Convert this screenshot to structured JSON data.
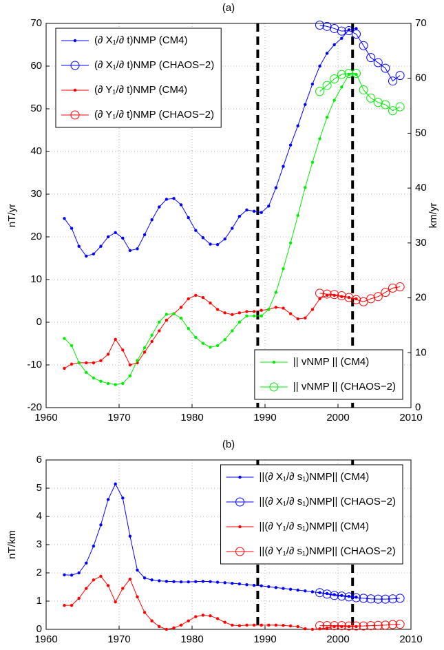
{
  "chart_data": [
    {
      "type": "line",
      "title": "(a)",
      "ylabel": "nT/yr",
      "y2label": "km/yr",
      "x": [
        1962.5,
        1963.5,
        1964.5,
        1965.5,
        1966.5,
        1967.5,
        1968.5,
        1969.5,
        1970.5,
        1971.5,
        1972.5,
        1973.5,
        1974.5,
        1975.5,
        1976.5,
        1977.5,
        1978.5,
        1979.5,
        1980.5,
        1981.5,
        1982.5,
        1983.5,
        1984.5,
        1985.5,
        1986.5,
        1987.5,
        1988.5,
        1989.5,
        1990.5,
        1991.5,
        1992.5,
        1993.5,
        1994.5,
        1995.5,
        1996.5,
        1997.5,
        1998.5,
        1999.5,
        2000.5,
        2001.5,
        2002.5,
        2003.5,
        2004.5,
        2005.5,
        2006.5,
        2007.5,
        2008.5
      ],
      "xlim": [
        1960,
        2010
      ],
      "xticks": [
        1960,
        1970,
        1980,
        1990,
        2000,
        2010
      ],
      "ylim": [
        -20,
        70
      ],
      "yticks": [
        -20,
        -10,
        0,
        10,
        20,
        30,
        40,
        50,
        60,
        70
      ],
      "y2lim": [
        0,
        70
      ],
      "y2ticks": [
        0,
        10,
        20,
        30,
        40,
        50,
        60,
        70
      ],
      "grid": true,
      "vlines": [
        1989,
        2002
      ],
      "legend": "upper left",
      "y2_legend": "lower right",
      "series": [
        {
          "name": "(∂ X₁/∂ t)NMP (CM4)",
          "color": "#0000ff",
          "marker": "dot",
          "values": [
            24.3,
            22,
            17.8,
            15.5,
            16,
            17.8,
            20,
            21,
            19.7,
            16.8,
            17.2,
            20.5,
            24,
            27,
            28.8,
            29,
            27.5,
            24.5,
            21.5,
            19.8,
            18.3,
            18.2,
            19.5,
            22,
            24.8,
            26.3,
            26,
            25.7,
            27.2,
            31.5,
            36.5,
            41.5,
            46,
            51,
            55.8,
            60,
            63,
            65,
            66.5,
            68.5,
            68.8,
            null,
            null,
            null,
            null,
            null,
            null
          ]
        },
        {
          "name": "(∂ X₁/∂ t)NMP (CHAOS−2)",
          "color": "#0000ff",
          "marker": "circle",
          "values": [
            null,
            null,
            null,
            null,
            null,
            null,
            null,
            null,
            null,
            null,
            null,
            null,
            null,
            null,
            null,
            null,
            null,
            null,
            null,
            null,
            null,
            null,
            null,
            null,
            null,
            null,
            null,
            null,
            null,
            null,
            null,
            null,
            null,
            null,
            null,
            69.6,
            69.3,
            68.8,
            68.2,
            68.3,
            67.5,
            64.8,
            62,
            60.8,
            59.5,
            56.5,
            57.8
          ]
        },
        {
          "name": "(∂ Y₁/∂ t)NMP (CM4)",
          "color": "#ff0000",
          "marker": "dot",
          "values": [
            -10.8,
            -9.8,
            -9.5,
            -9.5,
            -9.5,
            -9,
            -7.5,
            -4,
            -6.5,
            -10,
            -9.5,
            -7,
            -4.5,
            -2,
            0.5,
            2,
            3.5,
            5.5,
            6.3,
            5.8,
            4.5,
            3,
            2.2,
            1.8,
            2.2,
            2.5,
            2.5,
            2.8,
            3,
            3.5,
            3.3,
            2,
            0.8,
            1,
            3,
            5.5,
            6.3,
            6.3,
            6,
            5.8,
            5.5,
            null,
            null,
            null,
            null,
            null,
            null
          ]
        },
        {
          "name": "(∂ Y₁/∂ t)NMP (CHAOS−2)",
          "color": "#ff0000",
          "marker": "circle",
          "values": [
            null,
            null,
            null,
            null,
            null,
            null,
            null,
            null,
            null,
            null,
            null,
            null,
            null,
            null,
            null,
            null,
            null,
            null,
            null,
            null,
            null,
            null,
            null,
            null,
            null,
            null,
            null,
            null,
            null,
            null,
            null,
            null,
            null,
            null,
            null,
            6.8,
            6.6,
            6.5,
            6.2,
            5.8,
            5.3,
            4.8,
            5.5,
            6,
            7,
            8,
            8.3
          ]
        },
        {
          "name": "|| vNMP || (CM4)",
          "color": "#00ee00",
          "marker": "dot",
          "axis": "y2",
          "values": [
            12.6,
            11.3,
            8.2,
            6.4,
            5.4,
            4.8,
            4.4,
            4.2,
            4.4,
            5.8,
            8.6,
            10.9,
            13.2,
            15.6,
            17,
            17.1,
            16.3,
            14.4,
            12.8,
            11.7,
            11,
            11.3,
            12.4,
            14,
            15.6,
            16.7,
            16.7,
            16.7,
            17.9,
            21,
            25.3,
            30,
            35,
            40.1,
            44.7,
            49,
            52.9,
            56,
            58.4,
            60.7,
            60.7,
            null,
            null,
            null,
            null,
            null,
            null
          ]
        },
        {
          "name": "|| vNMP || (CHAOS−2)",
          "color": "#00ee00",
          "marker": "circle",
          "axis": "y2",
          "values": [
            null,
            null,
            null,
            null,
            null,
            null,
            null,
            null,
            null,
            null,
            null,
            null,
            null,
            null,
            null,
            null,
            null,
            null,
            null,
            null,
            null,
            null,
            null,
            null,
            null,
            null,
            null,
            null,
            null,
            null,
            null,
            null,
            null,
            null,
            null,
            57.6,
            58.7,
            59.9,
            60.7,
            60.9,
            60.9,
            57.9,
            56.4,
            55.6,
            55.2,
            54.1,
            54.8
          ]
        }
      ]
    },
    {
      "type": "line",
      "title": "(b)",
      "ylabel": "nT/km",
      "x": [
        1962.5,
        1963.5,
        1964.5,
        1965.5,
        1966.5,
        1967.5,
        1968.5,
        1969.5,
        1970.5,
        1971.5,
        1972.5,
        1973.5,
        1974.5,
        1975.5,
        1976.5,
        1977.5,
        1978.5,
        1979.5,
        1980.5,
        1981.5,
        1982.5,
        1983.5,
        1984.5,
        1985.5,
        1986.5,
        1987.5,
        1988.5,
        1989.5,
        1990.5,
        1991.5,
        1992.5,
        1993.5,
        1994.5,
        1995.5,
        1996.5,
        1997.5,
        1998.5,
        1999.5,
        2000.5,
        2001.5,
        2002.5,
        2003.5,
        2004.5,
        2005.5,
        2006.5,
        2007.5,
        2008.5
      ],
      "xlim": [
        1960,
        2010
      ],
      "xticks": [
        1960,
        1970,
        1980,
        1990,
        2000,
        2010
      ],
      "ylim": [
        0,
        6
      ],
      "yticks": [
        0,
        1,
        2,
        3,
        4,
        5,
        6
      ],
      "grid": true,
      "vlines": [
        1989,
        2002
      ],
      "legend": "upper right",
      "series": [
        {
          "name": "||(∂ X₁/∂ s₁)NMP|| (CM4)",
          "color": "#0000ff",
          "marker": "dot",
          "values": [
            1.93,
            1.92,
            2.0,
            2.35,
            2.95,
            3.7,
            4.6,
            5.15,
            4.65,
            3.3,
            2.1,
            1.82,
            1.75,
            1.72,
            1.7,
            1.69,
            1.68,
            1.68,
            1.69,
            1.7,
            1.69,
            1.67,
            1.65,
            1.63,
            1.61,
            1.58,
            1.56,
            1.54,
            1.51,
            1.48,
            1.45,
            1.42,
            1.39,
            1.36,
            1.33,
            1.3,
            1.27,
            1.23,
            1.2,
            1.17,
            1.14,
            null,
            null,
            null,
            null,
            null,
            null
          ]
        },
        {
          "name": "||(∂ X₁/∂ s₁)NMP|| (CHAOS−2)",
          "color": "#0000ff",
          "marker": "circle",
          "values": [
            null,
            null,
            null,
            null,
            null,
            null,
            null,
            null,
            null,
            null,
            null,
            null,
            null,
            null,
            null,
            null,
            null,
            null,
            null,
            null,
            null,
            null,
            null,
            null,
            null,
            null,
            null,
            null,
            null,
            null,
            null,
            null,
            null,
            null,
            null,
            1.3,
            1.25,
            1.2,
            1.18,
            1.15,
            1.12,
            1.1,
            1.08,
            1.07,
            1.07,
            1.08,
            1.1
          ]
        },
        {
          "name": "||(∂ Y₁/∂ s₁)NMP|| (CM4)",
          "color": "#ff0000",
          "marker": "dot",
          "values": [
            0.85,
            0.85,
            1.1,
            1.45,
            1.75,
            1.88,
            1.55,
            0.97,
            1.45,
            1.78,
            1.15,
            0.6,
            0.3,
            0.1,
            0.0,
            0.05,
            0.15,
            0.3,
            0.45,
            0.5,
            0.48,
            0.38,
            0.25,
            0.15,
            0.13,
            0.15,
            0.15,
            0.15,
            0.15,
            0.15,
            0.14,
            0.12,
            0.1,
            0.02,
            0.0,
            0.02,
            0.05,
            0.1,
            0.1,
            0.1,
            0.1,
            null,
            null,
            null,
            null,
            null,
            null
          ]
        },
        {
          "name": "||(∂ Y₁/∂ s₁)NMP|| (CHAOS−2)",
          "color": "#ff0000",
          "marker": "circle",
          "values": [
            null,
            null,
            null,
            null,
            null,
            null,
            null,
            null,
            null,
            null,
            null,
            null,
            null,
            null,
            null,
            null,
            null,
            null,
            null,
            null,
            null,
            null,
            null,
            null,
            null,
            null,
            null,
            null,
            null,
            null,
            null,
            null,
            null,
            null,
            null,
            0.13,
            0.13,
            0.13,
            0.13,
            0.12,
            0.12,
            0.12,
            0.13,
            0.14,
            0.15,
            0.17,
            0.18
          ]
        }
      ]
    }
  ]
}
